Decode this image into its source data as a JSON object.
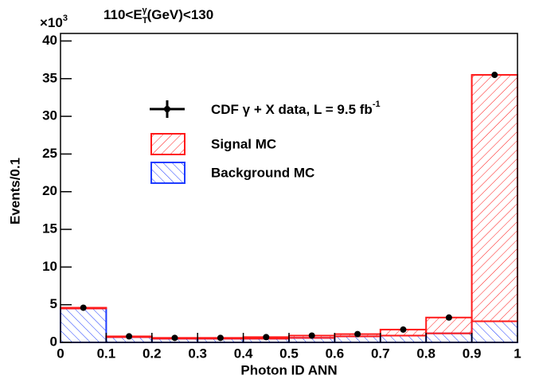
{
  "chart_data": {
    "type": "stacked_histogram",
    "title": {
      "prefix": "110<E",
      "sub": "T",
      "sup": "γ",
      "suffix": "(GeV)<130"
    },
    "y_multiplier": {
      "base": "×10",
      "exponent": "3"
    },
    "x_label": "Photon ID ANN",
    "y_label": "Events/0.1",
    "bins": [
      0,
      0.1,
      0.2,
      0.3,
      0.4,
      0.5,
      0.6,
      0.7,
      0.8,
      0.9,
      1
    ],
    "series": [
      {
        "name": "Background MC",
        "color": "#1f3cff",
        "values": [
          4.5,
          0.7,
          0.5,
          0.5,
          0.5,
          0.6,
          0.8,
          0.9,
          1.2,
          2.8
        ]
      },
      {
        "name": "Signal MC",
        "color": "#ff1a1a",
        "values": [
          0.1,
          0.1,
          0.1,
          0.1,
          0.2,
          0.3,
          0.3,
          0.8,
          2.1,
          32.7
        ]
      }
    ],
    "data_points": {
      "name": {
        "prefix": "CDF  γ + X data, L = 9.5 fb",
        "sup": "-1"
      },
      "color": "#000000",
      "x": [
        0.05,
        0.15,
        0.25,
        0.35,
        0.45,
        0.55,
        0.65,
        0.75,
        0.85,
        0.95
      ],
      "values": [
        4.6,
        0.8,
        0.6,
        0.6,
        0.7,
        0.9,
        1.1,
        1.7,
        3.3,
        35.5
      ]
    },
    "xlim": [
      0,
      1
    ],
    "ylim": [
      0,
      41
    ],
    "xticks": [
      0,
      0.1,
      0.2,
      0.3,
      0.4,
      0.5,
      0.6,
      0.7,
      0.8,
      0.9,
      1
    ],
    "yticks": [
      0,
      5,
      10,
      15,
      20,
      25,
      30,
      35,
      40
    ],
    "legend": "upper-center"
  }
}
